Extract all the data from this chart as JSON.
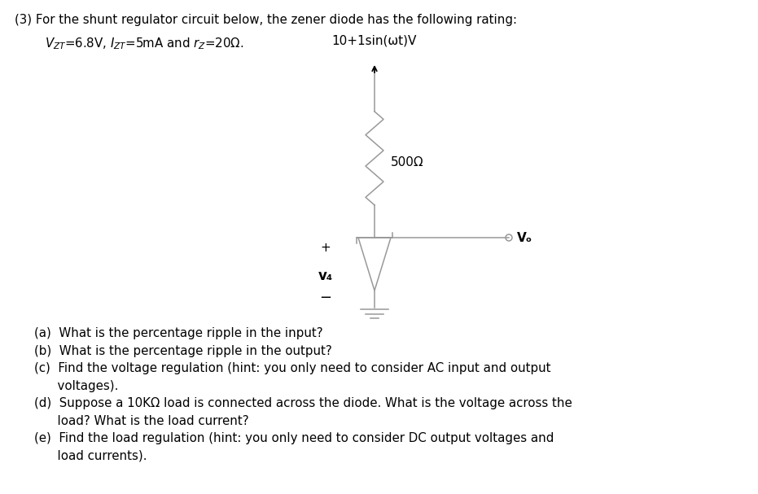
{
  "bg_color": "#ffffff",
  "title_line1": "(3) For the shunt regulator circuit below, the zener diode has the following rating:",
  "title_line2_pre": "    V",
  "title_line2": "    VZT=6.8V, IZT=5mA and rZ=20Ω.",
  "source_label": "10+1sin(ωt)V",
  "resistor_label": "500Ω",
  "vo_label": "Vₒ",
  "vz_label": "v₄",
  "plus_label": "+",
  "minus_label": "−",
  "q_a": "(a)  What is the percentage ripple in the input?",
  "q_b": "(b)  What is the percentage ripple in the output?",
  "q_c1": "(c)  Find the voltage regulation (hint: you only need to consider AC input and output",
  "q_c2": "      voltages).",
  "q_d1": "(d)  Suppose a 10KΩ load is connected across the diode. What is the voltage across the",
  "q_d2": "      load? What is the load current?",
  "q_e1": "(e)  Find the load regulation (hint: you only need to consider DC output voltages and",
  "q_e2": "      load currents).",
  "line_color": "#000000",
  "circuit_color": "#999999",
  "text_color": "#000000",
  "figw": 9.31,
  "figh": 6.07,
  "dpi": 100
}
